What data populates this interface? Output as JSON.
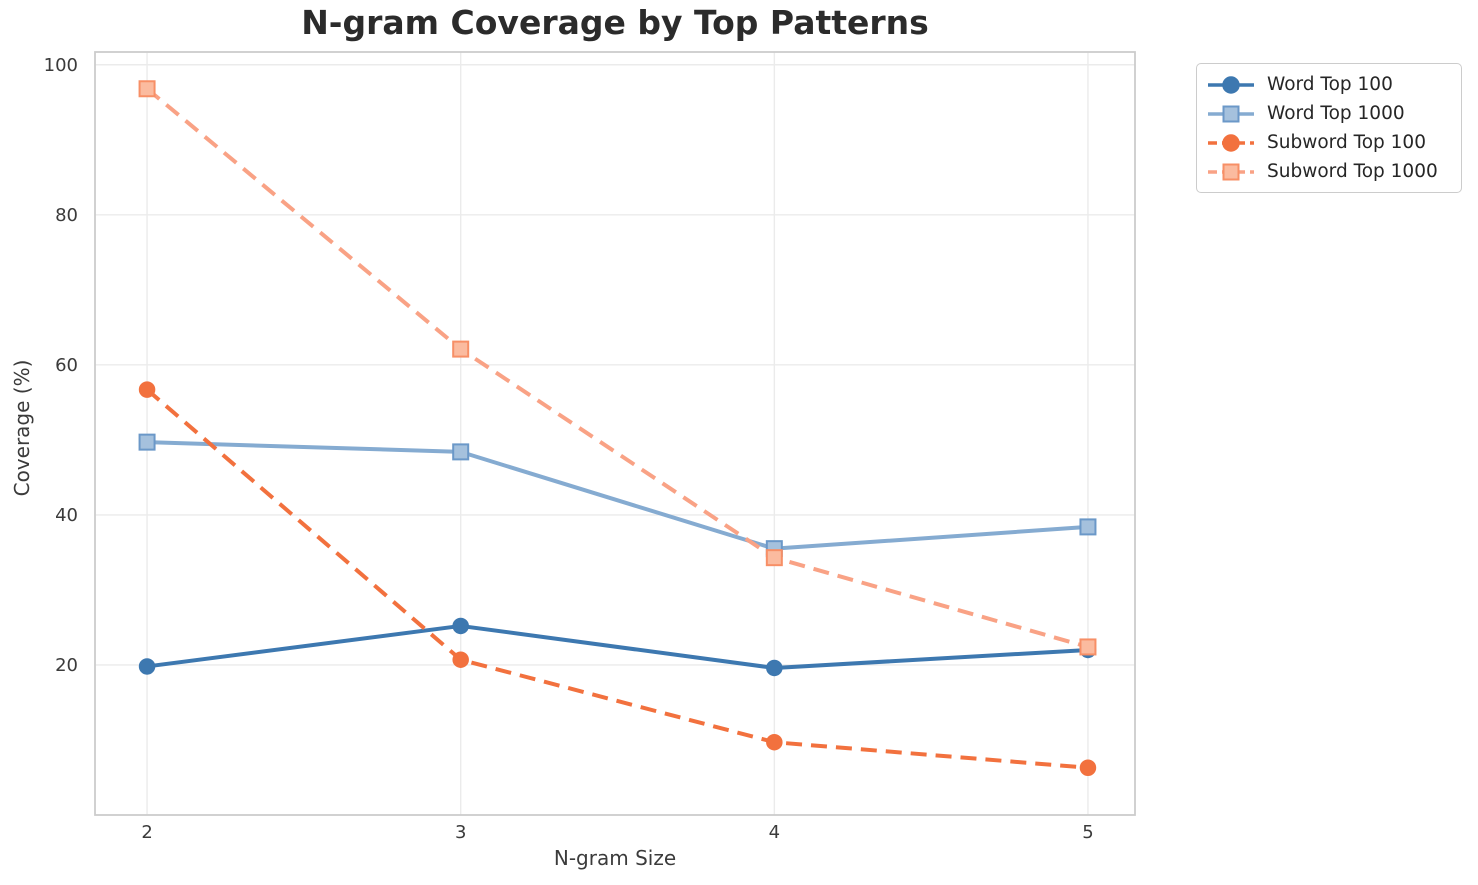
{
  "chart_data": {
    "type": "line",
    "title": "N-gram Coverage by Top Patterns",
    "xlabel": "N-gram Size",
    "ylabel": "Coverage (%)",
    "x": [
      2,
      3,
      4,
      5
    ],
    "xticks": [
      2,
      3,
      4,
      5
    ],
    "yticks": [
      20,
      40,
      60,
      80,
      100
    ],
    "xlim": [
      1.834,
      5.15
    ],
    "ylim": [
      0,
      101.7
    ],
    "grid": true,
    "legend_position": "upper right outside plot",
    "series": [
      {
        "name": "Word Top 100",
        "values": [
          19.8,
          25.2,
          19.6,
          22.0
        ],
        "color": "#3d78b0",
        "marker_fill": "#3d78b0",
        "marker_edge": "#3d78b0",
        "line_style": "solid",
        "marker": "circle"
      },
      {
        "name": "Word Top 1000",
        "values": [
          49.7,
          48.4,
          35.5,
          38.4
        ],
        "color": "#85abd1",
        "marker_fill": "#a5c1dd",
        "marker_edge": "#6b98c8",
        "line_style": "solid",
        "marker": "square"
      },
      {
        "name": "Subword Top 100",
        "values": [
          56.7,
          20.7,
          9.7,
          6.3
        ],
        "color": "#f2713e",
        "marker_fill": "#f2713e",
        "marker_edge": "#f2713e",
        "line_style": "dashed",
        "marker": "circle"
      },
      {
        "name": "Subword Top 1000",
        "values": [
          96.8,
          62.1,
          34.3,
          22.4
        ],
        "color": "#f9a285",
        "marker_fill": "#fbbb9f",
        "marker_edge": "#f78f66",
        "line_style": "dashed",
        "marker": "square"
      }
    ],
    "style": {
      "grid_color": "#ebebeb",
      "spine_color": "#cccccc",
      "title_color": "#2b2b2b",
      "tick_color": "#3b3b3b",
      "legend_text_color": "#262626",
      "background": "#ffffff"
    }
  }
}
